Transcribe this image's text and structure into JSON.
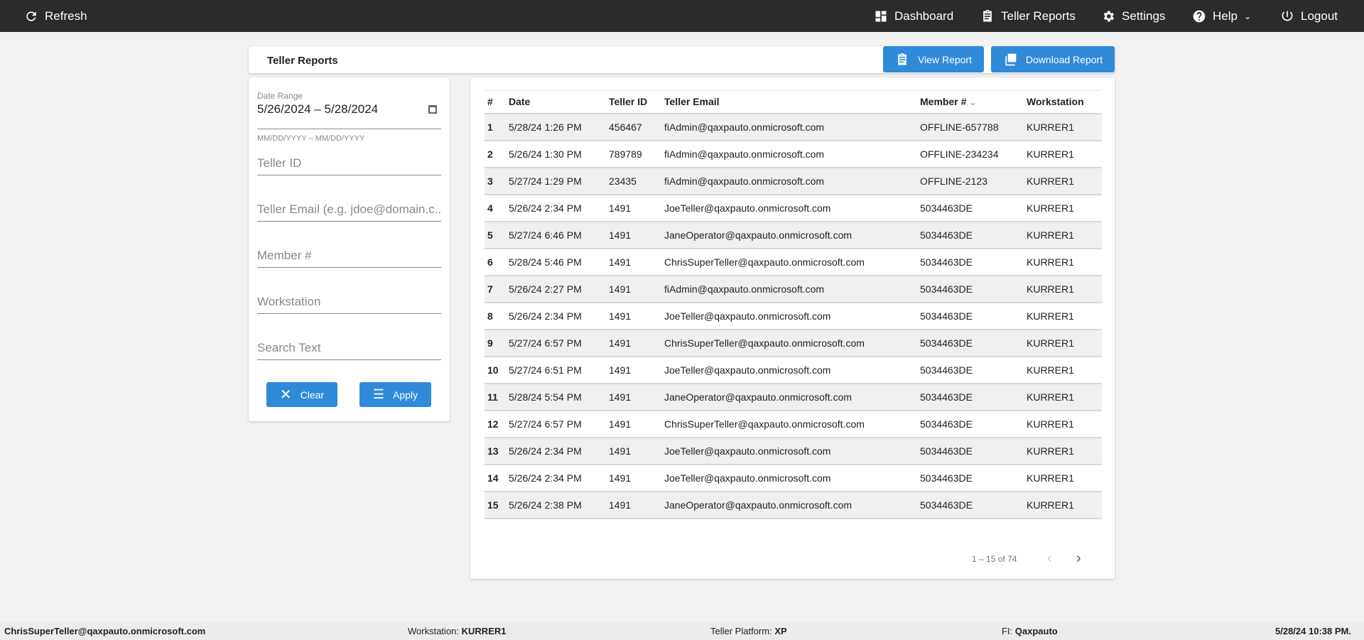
{
  "topbar": {
    "refresh": "Refresh",
    "dashboard": "Dashboard",
    "teller_reports": "Teller Reports",
    "settings": "Settings",
    "help": "Help",
    "logout": "Logout"
  },
  "header": {
    "title": "Teller Reports",
    "view_report": "View Report",
    "download_report": "Download Report"
  },
  "filters": {
    "date_range_label": "Date Range",
    "date_range_value": "5/26/2024 – 5/28/2024",
    "date_hint": "MM/DD/YYYY – MM/DD/YYYY",
    "teller_id_placeholder": "Teller ID",
    "teller_email_placeholder": "Teller Email (e.g. jdoe@domain.c...",
    "member_placeholder": "Member #",
    "workstation_placeholder": "Workstation",
    "search_placeholder": "Search Text",
    "clear": "Clear",
    "apply": "Apply"
  },
  "table": {
    "columns": [
      "#",
      "Date",
      "Teller ID",
      "Teller Email",
      "Member #",
      "Workstation"
    ],
    "sorted_column": "Member #",
    "rows": [
      [
        "1",
        "5/28/24 1:26 PM",
        "456467",
        "fiAdmin@qaxpauto.onmicrosoft.com",
        "OFFLINE-657788",
        "KURRER1"
      ],
      [
        "2",
        "5/26/24 1:30 PM",
        "789789",
        "fiAdmin@qaxpauto.onmicrosoft.com",
        "OFFLINE-234234",
        "KURRER1"
      ],
      [
        "3",
        "5/27/24 1:29 PM",
        "23435",
        "fiAdmin@qaxpauto.onmicrosoft.com",
        "OFFLINE-2123",
        "KURRER1"
      ],
      [
        "4",
        "5/26/24 2:34 PM",
        "1491",
        "JoeTeller@qaxpauto.onmicrosoft.com",
        "5034463DE",
        "KURRER1"
      ],
      [
        "5",
        "5/27/24 6:46 PM",
        "1491",
        "JaneOperator@qaxpauto.onmicrosoft.com",
        "5034463DE",
        "KURRER1"
      ],
      [
        "6",
        "5/28/24 5:46 PM",
        "1491",
        "ChrisSuperTeller@qaxpauto.onmicrosoft.com",
        "5034463DE",
        "KURRER1"
      ],
      [
        "7",
        "5/26/24 2:27 PM",
        "1491",
        "fiAdmin@qaxpauto.onmicrosoft.com",
        "5034463DE",
        "KURRER1"
      ],
      [
        "8",
        "5/26/24 2:34 PM",
        "1491",
        "JoeTeller@qaxpauto.onmicrosoft.com",
        "5034463DE",
        "KURRER1"
      ],
      [
        "9",
        "5/27/24 6:57 PM",
        "1491",
        "ChrisSuperTeller@qaxpauto.onmicrosoft.com",
        "5034463DE",
        "KURRER1"
      ],
      [
        "10",
        "5/27/24 6:51 PM",
        "1491",
        "JoeTeller@qaxpauto.onmicrosoft.com",
        "5034463DE",
        "KURRER1"
      ],
      [
        "11",
        "5/28/24 5:54 PM",
        "1491",
        "JaneOperator@qaxpauto.onmicrosoft.com",
        "5034463DE",
        "KURRER1"
      ],
      [
        "12",
        "5/27/24 6:57 PM",
        "1491",
        "ChrisSuperTeller@qaxpauto.onmicrosoft.com",
        "5034463DE",
        "KURRER1"
      ],
      [
        "13",
        "5/26/24 2:34 PM",
        "1491",
        "JoeTeller@qaxpauto.onmicrosoft.com",
        "5034463DE",
        "KURRER1"
      ],
      [
        "14",
        "5/26/24 2:34 PM",
        "1491",
        "JoeTeller@qaxpauto.onmicrosoft.com",
        "5034463DE",
        "KURRER1"
      ],
      [
        "15",
        "5/26/24 2:38 PM",
        "1491",
        "JaneOperator@qaxpauto.onmicrosoft.com",
        "5034463DE",
        "KURRER1"
      ]
    ]
  },
  "pagination": {
    "range": "1 – 15 of 74"
  },
  "footer": {
    "user": "ChrisSuperTeller@qaxpauto.onmicrosoft.com",
    "workstation_label": "Workstation:",
    "workstation": "KURRER1",
    "platform_label": "Teller Platform:",
    "platform": "XP",
    "fi_label": "FI:",
    "fi": "Qaxpauto",
    "datetime": "5/28/24 10:38 PM."
  },
  "colors": {
    "topbar": "#2b2b2b",
    "accent": "#2f8ada",
    "row_alt": "#f0f0f0"
  }
}
